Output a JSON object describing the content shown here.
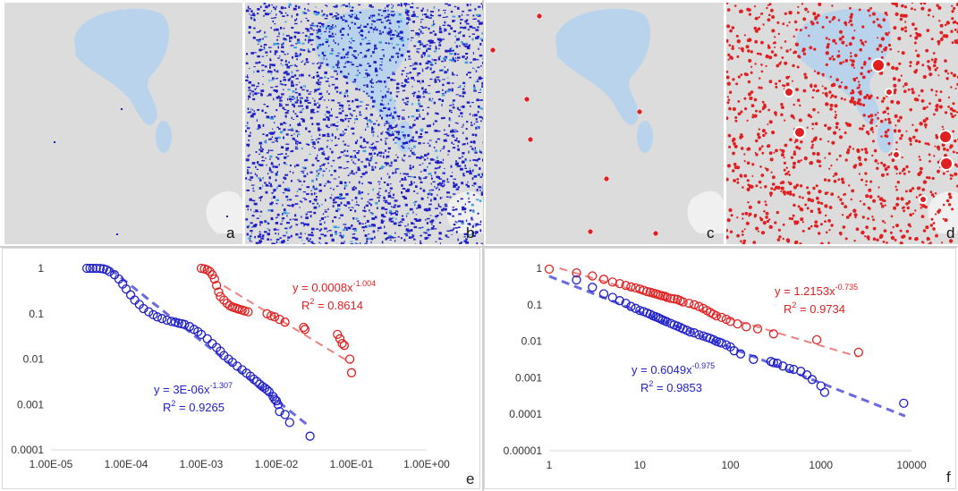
{
  "panels": {
    "a": {
      "label": "a"
    },
    "b": {
      "label": "b"
    },
    "c": {
      "label": "c"
    },
    "d": {
      "label": "d"
    },
    "e": {
      "label": "e"
    },
    "f": {
      "label": "f"
    }
  },
  "colors": {
    "blue": "#1f1fc8",
    "red": "#e02020",
    "fit_blue": "#6a6ae0",
    "fit_red": "#f08080",
    "water": "#b9d3ec",
    "land": "#dcdcdc"
  },
  "chart_data": [
    {
      "type": "scatter",
      "panel": "e",
      "xscale": "log",
      "yscale": "log",
      "xlim": [
        1e-05,
        1
      ],
      "ylim": [
        0.0001,
        1
      ],
      "xticks": [
        "1.00E-05",
        "1.00E-04",
        "1.00E-03",
        "1.00E-02",
        "1.00E-01",
        "1.00E+00"
      ],
      "yticks": [
        "1",
        "0.1",
        "0.01",
        "0.001",
        "0.0001"
      ],
      "series": [
        {
          "color": "blue",
          "x": [
            3e-05,
            3.3e-05,
            3.6e-05,
            4e-05,
            4.5e-05,
            5e-05,
            5.5e-05,
            6e-05,
            7e-05,
            8e-05,
            9e-05,
            0.0001,
            0.000115,
            0.00013,
            0.00015,
            0.00017,
            0.0002,
            0.00023,
            0.00026,
            0.0003,
            0.00035,
            0.0004,
            0.00045,
            0.0005,
            0.00055,
            0.0006,
            0.0007,
            0.0008,
            0.0009,
            0.001,
            0.0012,
            0.0014,
            0.0016,
            0.0018,
            0.002,
            0.0023,
            0.0026,
            0.003,
            0.0035,
            0.004,
            0.0045,
            0.005,
            0.0055,
            0.006,
            0.0065,
            0.007,
            0.0075,
            0.008,
            0.009,
            0.0095,
            0.01,
            0.0105,
            0.011,
            0.013,
            0.015,
            0.028
          ],
          "y": [
            1,
            1,
            1,
            1,
            0.99,
            0.97,
            0.93,
            0.85,
            0.72,
            0.58,
            0.45,
            0.35,
            0.26,
            0.2,
            0.16,
            0.13,
            0.11,
            0.095,
            0.085,
            0.078,
            0.072,
            0.068,
            0.065,
            0.062,
            0.06,
            0.058,
            0.052,
            0.045,
            0.04,
            0.035,
            0.028,
            0.022,
            0.018,
            0.015,
            0.012,
            0.01,
            0.0085,
            0.007,
            0.0058,
            0.0049,
            0.0042,
            0.0036,
            0.0032,
            0.0028,
            0.0025,
            0.0023,
            0.0021,
            0.0019,
            0.0015,
            0.0013,
            0.0012,
            0.001,
            0.0007,
            0.0006,
            0.0004,
            0.0002
          ],
          "fit": {
            "a": 3e-06,
            "b": -1.307,
            "range": [
              5e-05,
              0.025
            ]
          }
        },
        {
          "color": "red",
          "x": [
            0.001,
            0.0011,
            0.0012,
            0.0013,
            0.0014,
            0.0015,
            0.0016,
            0.0017,
            0.0018,
            0.002,
            0.0022,
            0.0024,
            0.0026,
            0.0028,
            0.003,
            0.0032,
            0.0035,
            0.0038,
            0.0042,
            0.0075,
            0.0085,
            0.0095,
            0.011,
            0.013,
            0.023,
            0.024,
            0.065,
            0.07,
            0.075,
            0.08,
            0.095,
            0.1
          ],
          "y": [
            1,
            0.97,
            0.92,
            0.85,
            0.72,
            0.58,
            0.42,
            0.3,
            0.24,
            0.2,
            0.17,
            0.15,
            0.14,
            0.135,
            0.13,
            0.125,
            0.12,
            0.115,
            0.11,
            0.1,
            0.09,
            0.085,
            0.075,
            0.065,
            0.05,
            0.045,
            0.035,
            0.028,
            0.022,
            0.02,
            0.01,
            0.005
          ],
          "fit": {
            "a": 0.0008,
            "b": -1.004,
            "range": [
              0.002,
              0.1
            ]
          }
        }
      ],
      "equations": [
        {
          "color": "red",
          "eq": "y = 0.0008x",
          "exp": "-1.004",
          "r2_pre": "R",
          "r2_sup": "2",
          "r2_post": " = 0.8614"
        },
        {
          "color": "blue",
          "eq": "y = 3E-06x",
          "exp": "-1.307",
          "r2_pre": "R",
          "r2_sup": "2",
          "r2_post": " = 0.9265"
        }
      ]
    },
    {
      "type": "scatter",
      "panel": "f",
      "xscale": "log",
      "yscale": "log",
      "xlim": [
        1,
        10000
      ],
      "ylim": [
        1e-05,
        1
      ],
      "xticks": [
        "1",
        "10",
        "100",
        "1000",
        "10000"
      ],
      "yticks": [
        "1",
        "0.1",
        "0.01",
        "0.001",
        "0.0001",
        "0.00001"
      ],
      "series": [
        {
          "color": "red",
          "x": [
            1,
            2,
            3,
            4,
            5,
            6,
            7,
            8,
            9,
            10,
            11,
            12,
            13,
            14,
            15,
            16,
            17,
            18,
            19,
            20,
            22,
            24,
            26,
            28,
            30,
            35,
            40,
            45,
            50,
            55,
            60,
            65,
            70,
            80,
            90,
            100,
            120,
            150,
            200,
            300,
            900,
            2600
          ],
          "y": [
            0.95,
            0.75,
            0.62,
            0.5,
            0.42,
            0.38,
            0.34,
            0.31,
            0.29,
            0.27,
            0.25,
            0.23,
            0.22,
            0.21,
            0.2,
            0.19,
            0.18,
            0.175,
            0.17,
            0.16,
            0.15,
            0.145,
            0.14,
            0.13,
            0.12,
            0.11,
            0.1,
            0.09,
            0.08,
            0.07,
            0.062,
            0.055,
            0.05,
            0.045,
            0.04,
            0.035,
            0.03,
            0.025,
            0.022,
            0.016,
            0.011,
            0.005
          ],
          "fit": {
            "a": 1.2153,
            "b": -0.735,
            "range": [
              1,
              2600
            ]
          }
        },
        {
          "color": "blue",
          "x": [
            2,
            3,
            4,
            5,
            6,
            7,
            8,
            9,
            10,
            11,
            12,
            13,
            14,
            15,
            16,
            17,
            18,
            19,
            20,
            22,
            24,
            26,
            28,
            30,
            33,
            36,
            40,
            45,
            50,
            55,
            60,
            65,
            70,
            75,
            80,
            90,
            100,
            110,
            130,
            180,
            280,
            300,
            330,
            380,
            450,
            500,
            600,
            700,
            800,
            1000,
            1100,
            8200
          ],
          "y": [
            0.48,
            0.3,
            0.2,
            0.16,
            0.13,
            0.11,
            0.09,
            0.08,
            0.07,
            0.065,
            0.06,
            0.055,
            0.05,
            0.047,
            0.044,
            0.041,
            0.038,
            0.036,
            0.034,
            0.031,
            0.028,
            0.026,
            0.024,
            0.022,
            0.02,
            0.018,
            0.017,
            0.015,
            0.014,
            0.013,
            0.012,
            0.011,
            0.01,
            0.0095,
            0.009,
            0.008,
            0.007,
            0.0055,
            0.0045,
            0.0032,
            0.0028,
            0.0026,
            0.0025,
            0.0021,
            0.0018,
            0.0017,
            0.0015,
            0.0012,
            0.0009,
            0.0006,
            0.0004,
            0.0002
          ],
          "fit": {
            "a": 0.6049,
            "b": -0.975,
            "range": [
              1,
              8500
            ]
          }
        }
      ],
      "equations": [
        {
          "color": "red",
          "eq": "y = 1.2153x",
          "exp": "-0.735",
          "r2_pre": "R",
          "r2_sup": "2",
          "r2_post": " = 0.9734"
        },
        {
          "color": "blue",
          "eq": "y = 0.6049x",
          "exp": "-0.975",
          "r2_pre": "R",
          "r2_sup": "2",
          "r2_post": " = 0.9853"
        }
      ]
    }
  ]
}
